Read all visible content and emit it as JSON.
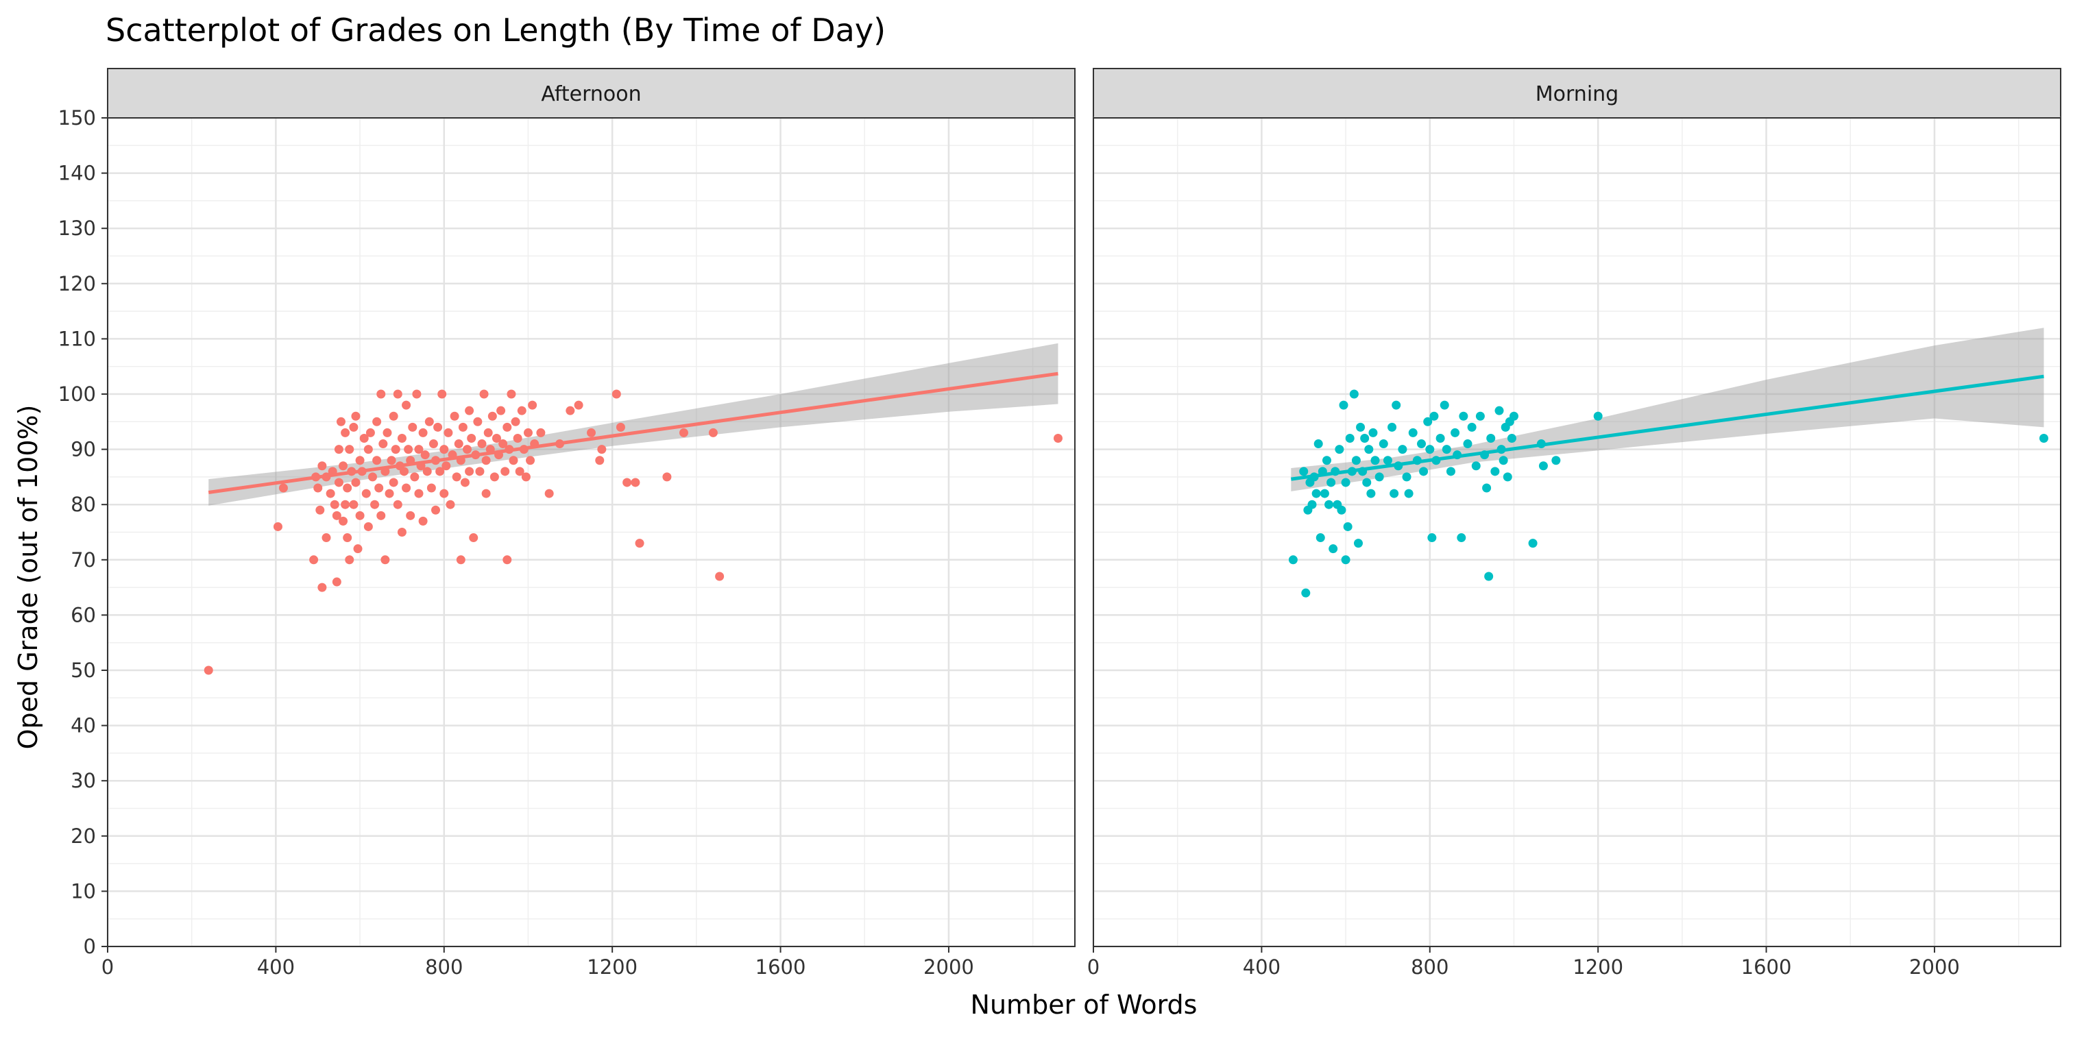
{
  "chart_data": {
    "type": "scatter",
    "title": "Scatterplot of Grades on Length (By Time of Day)",
    "xlabel": "Number of Words",
    "ylabel": "Oped Grade (out of 100%)",
    "xlim": [
      0,
      2300
    ],
    "ylim": [
      0,
      150
    ],
    "x_ticks": [
      0,
      400,
      800,
      1200,
      1600,
      2000
    ],
    "y_ticks": [
      0,
      10,
      20,
      30,
      40,
      50,
      60,
      70,
      80,
      90,
      100,
      110,
      120,
      130,
      140,
      150
    ],
    "grid": true,
    "legend": "none",
    "panels": [
      {
        "name": "Afternoon",
        "color": "#F8766D",
        "fit_line": {
          "x": [
            240,
            2260
          ],
          "y": [
            82.2,
            103.7
          ]
        },
        "ci_band": {
          "x": [
            240,
            600,
            900,
            1200,
            1600,
            2000,
            2260
          ],
          "upper": [
            84.6,
            87.6,
            90.8,
            94.8,
            100.0,
            105.6,
            109.2
          ],
          "lower": [
            79.8,
            84.4,
            87.6,
            90.6,
            94.0,
            96.8,
            98.2
          ]
        },
        "points": [
          [
            240,
            50
          ],
          [
            405,
            76
          ],
          [
            418,
            83
          ],
          [
            490,
            70
          ],
          [
            495,
            85
          ],
          [
            500,
            83
          ],
          [
            505,
            79
          ],
          [
            510,
            87
          ],
          [
            510,
            65
          ],
          [
            520,
            74
          ],
          [
            520,
            85
          ],
          [
            530,
            82
          ],
          [
            535,
            86
          ],
          [
            540,
            80
          ],
          [
            545,
            78
          ],
          [
            545,
            66
          ],
          [
            550,
            90
          ],
          [
            550,
            84
          ],
          [
            555,
            95
          ],
          [
            560,
            77
          ],
          [
            560,
            87
          ],
          [
            565,
            80
          ],
          [
            565,
            93
          ],
          [
            570,
            74
          ],
          [
            570,
            83
          ],
          [
            575,
            90
          ],
          [
            575,
            70
          ],
          [
            580,
            86
          ],
          [
            585,
            94
          ],
          [
            585,
            80
          ],
          [
            590,
            96
          ],
          [
            590,
            84
          ],
          [
            595,
            72
          ],
          [
            600,
            88
          ],
          [
            600,
            78
          ],
          [
            605,
            86
          ],
          [
            610,
            92
          ],
          [
            615,
            82
          ],
          [
            620,
            90
          ],
          [
            620,
            76
          ],
          [
            625,
            93
          ],
          [
            630,
            85
          ],
          [
            635,
            80
          ],
          [
            640,
            88
          ],
          [
            640,
            95
          ],
          [
            645,
            83
          ],
          [
            650,
            100
          ],
          [
            650,
            78
          ],
          [
            655,
            91
          ],
          [
            660,
            86
          ],
          [
            660,
            70
          ],
          [
            665,
            93
          ],
          [
            670,
            82
          ],
          [
            675,
            88
          ],
          [
            680,
            96
          ],
          [
            680,
            84
          ],
          [
            685,
            90
          ],
          [
            690,
            80
          ],
          [
            690,
            100
          ],
          [
            695,
            87
          ],
          [
            700,
            92
          ],
          [
            700,
            75
          ],
          [
            705,
            86
          ],
          [
            710,
            98
          ],
          [
            710,
            83
          ],
          [
            715,
            90
          ],
          [
            720,
            88
          ],
          [
            720,
            78
          ],
          [
            725,
            94
          ],
          [
            730,
            85
          ],
          [
            735,
            100
          ],
          [
            740,
            90
          ],
          [
            740,
            82
          ],
          [
            745,
            87
          ],
          [
            750,
            93
          ],
          [
            750,
            77
          ],
          [
            755,
            89
          ],
          [
            760,
            86
          ],
          [
            765,
            95
          ],
          [
            770,
            83
          ],
          [
            775,
            91
          ],
          [
            780,
            88
          ],
          [
            780,
            79
          ],
          [
            785,
            94
          ],
          [
            790,
            86
          ],
          [
            795,
            100
          ],
          [
            800,
            90
          ],
          [
            800,
            82
          ],
          [
            805,
            87
          ],
          [
            810,
            93
          ],
          [
            815,
            80
          ],
          [
            820,
            89
          ],
          [
            825,
            96
          ],
          [
            830,
            85
          ],
          [
            835,
            91
          ],
          [
            840,
            88
          ],
          [
            840,
            70
          ],
          [
            845,
            94
          ],
          [
            850,
            84
          ],
          [
            855,
            90
          ],
          [
            860,
            97
          ],
          [
            860,
            86
          ],
          [
            865,
            92
          ],
          [
            870,
            74
          ],
          [
            875,
            89
          ],
          [
            880,
            95
          ],
          [
            885,
            86
          ],
          [
            890,
            91
          ],
          [
            895,
            100
          ],
          [
            900,
            88
          ],
          [
            900,
            82
          ],
          [
            905,
            93
          ],
          [
            910,
            90
          ],
          [
            915,
            96
          ],
          [
            920,
            85
          ],
          [
            925,
            92
          ],
          [
            930,
            89
          ],
          [
            935,
            97
          ],
          [
            940,
            91
          ],
          [
            945,
            86
          ],
          [
            950,
            94
          ],
          [
            950,
            70
          ],
          [
            955,
            90
          ],
          [
            960,
            100
          ],
          [
            965,
            88
          ],
          [
            970,
            95
          ],
          [
            975,
            92
          ],
          [
            980,
            86
          ],
          [
            985,
            97
          ],
          [
            990,
            90
          ],
          [
            995,
            85
          ],
          [
            1000,
            93
          ],
          [
            1005,
            88
          ],
          [
            1010,
            98
          ],
          [
            1015,
            91
          ],
          [
            1030,
            93
          ],
          [
            1050,
            82
          ],
          [
            1075,
            91
          ],
          [
            1100,
            97
          ],
          [
            1120,
            98
          ],
          [
            1150,
            93
          ],
          [
            1170,
            88
          ],
          [
            1175,
            90
          ],
          [
            1210,
            100
          ],
          [
            1220,
            94
          ],
          [
            1235,
            84
          ],
          [
            1255,
            84
          ],
          [
            1265,
            73
          ],
          [
            1330,
            85
          ],
          [
            1370,
            93
          ],
          [
            1440,
            93
          ],
          [
            1455,
            67
          ],
          [
            2260,
            92
          ]
        ]
      },
      {
        "name": "Morning",
        "color": "#00BFC4",
        "fit_line": {
          "x": [
            470,
            2260
          ],
          "y": [
            84.6,
            103.2
          ]
        },
        "ci_band": {
          "x": [
            470,
            700,
            900,
            1200,
            1600,
            2000,
            2260
          ],
          "upper": [
            86.6,
            88.4,
            90.8,
            95.6,
            102.6,
            108.8,
            112.0
          ],
          "lower": [
            82.4,
            85.0,
            87.6,
            89.8,
            92.8,
            95.6,
            94.0
          ]
        },
        "points": [
          [
            475,
            70
          ],
          [
            500,
            86
          ],
          [
            505,
            64
          ],
          [
            510,
            79
          ],
          [
            515,
            84
          ],
          [
            520,
            80
          ],
          [
            525,
            85
          ],
          [
            530,
            82
          ],
          [
            535,
            91
          ],
          [
            540,
            74
          ],
          [
            545,
            86
          ],
          [
            550,
            82
          ],
          [
            555,
            88
          ],
          [
            560,
            80
          ],
          [
            565,
            84
          ],
          [
            570,
            72
          ],
          [
            575,
            86
          ],
          [
            580,
            80
          ],
          [
            585,
            90
          ],
          [
            590,
            79
          ],
          [
            595,
            98
          ],
          [
            600,
            84
          ],
          [
            600,
            70
          ],
          [
            605,
            76
          ],
          [
            610,
            92
          ],
          [
            615,
            86
          ],
          [
            620,
            100
          ],
          [
            625,
            88
          ],
          [
            630,
            73
          ],
          [
            635,
            94
          ],
          [
            640,
            86
          ],
          [
            645,
            92
          ],
          [
            650,
            84
          ],
          [
            655,
            90
          ],
          [
            660,
            82
          ],
          [
            665,
            93
          ],
          [
            670,
            88
          ],
          [
            680,
            85
          ],
          [
            690,
            91
          ],
          [
            700,
            88
          ],
          [
            710,
            94
          ],
          [
            715,
            82
          ],
          [
            720,
            98
          ],
          [
            725,
            87
          ],
          [
            735,
            90
          ],
          [
            745,
            85
          ],
          [
            750,
            82
          ],
          [
            760,
            93
          ],
          [
            770,
            88
          ],
          [
            780,
            91
          ],
          [
            785,
            86
          ],
          [
            795,
            95
          ],
          [
            800,
            90
          ],
          [
            805,
            74
          ],
          [
            810,
            96
          ],
          [
            815,
            88
          ],
          [
            825,
            92
          ],
          [
            835,
            98
          ],
          [
            840,
            90
          ],
          [
            850,
            86
          ],
          [
            860,
            93
          ],
          [
            865,
            89
          ],
          [
            875,
            74
          ],
          [
            880,
            96
          ],
          [
            890,
            91
          ],
          [
            900,
            94
          ],
          [
            910,
            87
          ],
          [
            920,
            96
          ],
          [
            930,
            89
          ],
          [
            935,
            83
          ],
          [
            940,
            67
          ],
          [
            945,
            92
          ],
          [
            955,
            86
          ],
          [
            965,
            97
          ],
          [
            970,
            90
          ],
          [
            975,
            88
          ],
          [
            980,
            94
          ],
          [
            985,
            85
          ],
          [
            990,
            95
          ],
          [
            995,
            92
          ],
          [
            1000,
            96
          ],
          [
            1045,
            73
          ],
          [
            1065,
            91
          ],
          [
            1070,
            87
          ],
          [
            1100,
            88
          ],
          [
            1200,
            96
          ],
          [
            2260,
            92
          ]
        ]
      }
    ]
  }
}
